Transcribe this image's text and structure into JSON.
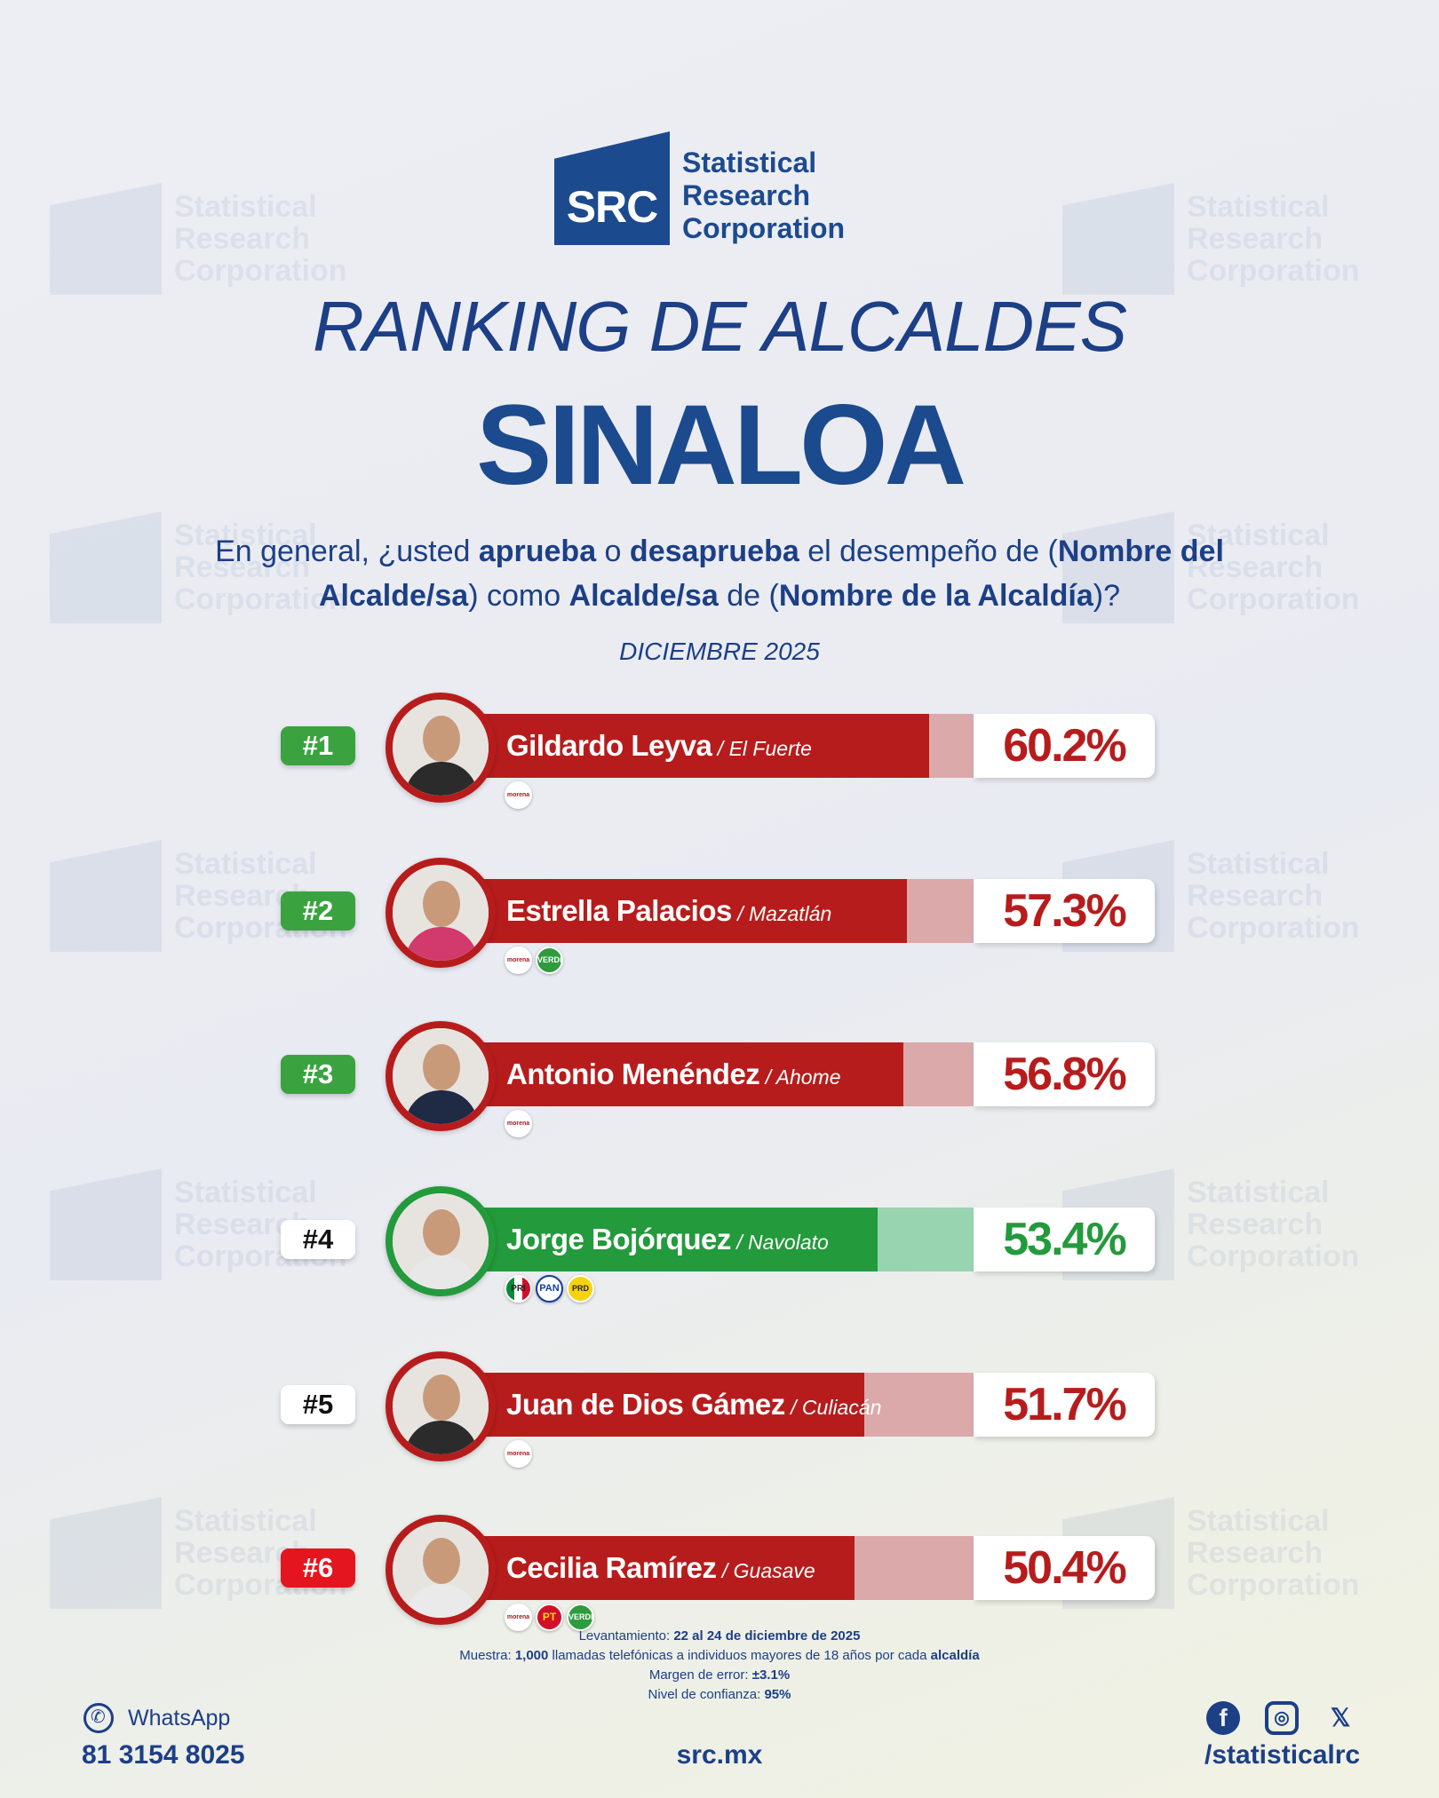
{
  "brand": {
    "logo_mark": "SRC",
    "logo_lines": [
      "Statistical",
      "Research",
      "Corporation"
    ],
    "color_primary": "#1c4a8e"
  },
  "header": {
    "title": "RANKING DE ALCALDES",
    "state": "SINALOA",
    "question_parts": [
      "En general, ¿usted ",
      "aprueba",
      " o ",
      "desaprueba",
      " el desempeño de (",
      "Nombre del Alcalde/sa",
      ") como ",
      "Alcalde/sa",
      " de (",
      "Nombre de la Alcaldía",
      ")?"
    ],
    "date": "DICIEMBRE 2025"
  },
  "chart_data": {
    "type": "bar",
    "title": "RANKING DE ALCALDES",
    "categories": [
      "Gildardo Leyva",
      "Estrella Palacios",
      "Antonio Menéndez",
      "Jorge Bojórquez",
      "Juan de Dios Gámez",
      "Cecilia Ramírez"
    ],
    "values": [
      60.2,
      57.3,
      56.8,
      53.4,
      51.7,
      50.4
    ],
    "unit": "%",
    "ylim": [
      0,
      100
    ],
    "rows": [
      {
        "rank": "#1",
        "rank_style": "green",
        "name": "Gildardo Leyva",
        "municipality": " / El Fuerte",
        "value": 60.2,
        "label": "60.2%",
        "color": "#b71c1c",
        "light": "#dba9aa",
        "text": "#b71c1c",
        "parties": [
          "morena"
        ]
      },
      {
        "rank": "#2",
        "rank_style": "green",
        "name": "Estrella Palacios",
        "municipality": " / Mazatlán",
        "value": 57.3,
        "label": "57.3%",
        "color": "#b71c1c",
        "light": "#dba9aa",
        "text": "#b71c1c",
        "parties": [
          "morena",
          "verde"
        ]
      },
      {
        "rank": "#3",
        "rank_style": "green",
        "name": "Antonio Menéndez",
        "municipality": " / Ahome",
        "value": 56.8,
        "label": "56.8%",
        "color": "#b71c1c",
        "light": "#dba9aa",
        "text": "#b71c1c",
        "parties": [
          "morena"
        ]
      },
      {
        "rank": "#4",
        "rank_style": "white",
        "name": "Jorge Bojórquez",
        "municipality": " / Navolato",
        "value": 53.4,
        "label": "53.4%",
        "color": "#239a3c",
        "light": "#98d4b0",
        "text": "#239a3c",
        "parties": [
          "pri",
          "pan",
          "prd"
        ]
      },
      {
        "rank": "#5",
        "rank_style": "white",
        "name": "Juan de Dios Gámez",
        "municipality": " / Culiacán",
        "value": 51.7,
        "label": "51.7%",
        "color": "#b71c1c",
        "light": "#dba9aa",
        "text": "#b71c1c",
        "parties": [
          "morena"
        ]
      },
      {
        "rank": "#6",
        "rank_style": "red",
        "name": "Cecilia Ramírez",
        "municipality": " / Guasave",
        "value": 50.4,
        "label": "50.4%",
        "color": "#b71c1c",
        "light": "#dba9aa",
        "text": "#b71c1c",
        "parties": [
          "morena",
          "pt",
          "verde"
        ]
      }
    ]
  },
  "parties": {
    "morena": "morena",
    "verde": "VERDE",
    "pri": "PRI",
    "pan": "PAN",
    "prd": "PRD",
    "pt": "PT"
  },
  "footer": {
    "lines": [
      [
        "Levantamiento: ",
        "22 al 24 de diciembre de 2025",
        ""
      ],
      [
        "Muestra: ",
        "1,000",
        " llamadas telefónicas a individuos mayores de 18 años por cada ",
        "alcaldía"
      ],
      [
        "Margen de error: ",
        "±3.1%",
        ""
      ],
      [
        "Nivel de confianza: ",
        "95%",
        ""
      ]
    ],
    "whatsapp_label": "WhatsApp",
    "phone": "81 3154 8025",
    "site": "src.mx",
    "handle": "/statisticalrc",
    "social_icons": [
      "facebook-icon",
      "instagram-icon",
      "x-icon"
    ]
  }
}
